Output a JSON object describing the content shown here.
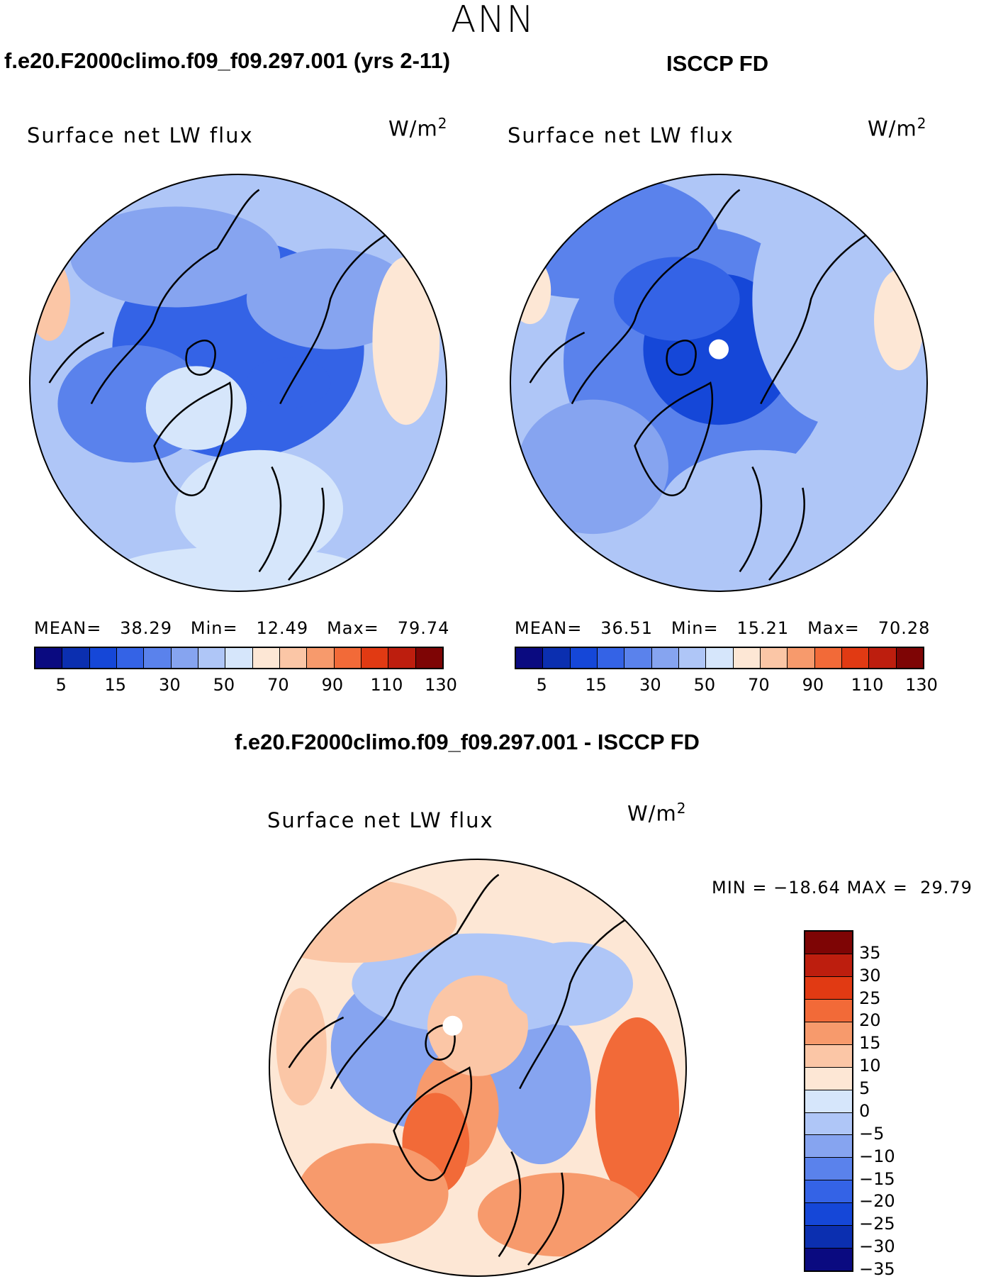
{
  "page_title": "ANN",
  "headers": {
    "model": "f.e20.F2000climo.f09_f09.297.001 (yrs 2-11)",
    "obs": "ISCCP FD",
    "diff": "f.e20.F2000climo.f09_f09.297.001 - ISCCP FD"
  },
  "chart_data": [
    {
      "type": "heatmap",
      "projection": "polar-stereographic-north",
      "title": "Surface net LW flux",
      "units_base": "W/m",
      "units_exp": "2",
      "stats": {
        "mean_label": "MEAN=",
        "mean": "38.29",
        "min_label": "Min=",
        "min": "12.49",
        "max_label": "Max=",
        "max": "79.74"
      },
      "contour_levels": [
        5,
        10,
        15,
        20,
        30,
        40,
        50,
        60,
        70,
        80,
        90,
        100,
        110,
        130
      ],
      "colorbar_tick_labels": [
        "5",
        "15",
        "30",
        "50",
        "70",
        "90",
        "110",
        "130"
      ],
      "colorbar_colors": [
        "#0a0a80",
        "#0b2fb0",
        "#1547d8",
        "#3463e6",
        "#5a82ec",
        "#86a4f0",
        "#afc6f7",
        "#d6e6fb",
        "#fde7d5",
        "#fbc6a6",
        "#f79a6c",
        "#f26a38",
        "#e13a13",
        "#bd1e0e",
        "#7e0505"
      ]
    },
    {
      "type": "heatmap",
      "projection": "polar-stereographic-north",
      "title": "Surface net LW flux",
      "units_base": "W/m",
      "units_exp": "2",
      "stats": {
        "mean_label": "MEAN=",
        "mean": "36.51",
        "min_label": "Min=",
        "min": "15.21",
        "max_label": "Max=",
        "max": "70.28"
      },
      "contour_levels": [
        5,
        10,
        15,
        20,
        30,
        40,
        50,
        60,
        70,
        80,
        90,
        100,
        110,
        130
      ],
      "colorbar_tick_labels": [
        "5",
        "15",
        "30",
        "50",
        "70",
        "90",
        "110",
        "130"
      ],
      "colorbar_colors": [
        "#0a0a80",
        "#0b2fb0",
        "#1547d8",
        "#3463e6",
        "#5a82ec",
        "#86a4f0",
        "#afc6f7",
        "#d6e6fb",
        "#fde7d5",
        "#fbc6a6",
        "#f79a6c",
        "#f26a38",
        "#e13a13",
        "#bd1e0e",
        "#7e0505"
      ]
    },
    {
      "type": "heatmap",
      "projection": "polar-stereographic-north",
      "title": "Surface net LW flux",
      "units_base": "W/m",
      "units_exp": "2",
      "stats": {
        "min_label": "MIN =",
        "min": "−18.64",
        "max_label": "MAX =",
        "max": "29.79"
      },
      "contour_levels": [
        -35,
        -30,
        -25,
        -20,
        -15,
        -10,
        -5,
        0,
        5,
        10,
        15,
        20,
        25,
        30,
        35
      ],
      "colorbar_tick_labels": [
        "35",
        "30",
        "25",
        "20",
        "15",
        "10",
        "5",
        "0",
        "−5",
        "−10",
        "−15",
        "−20",
        "−25",
        "−30",
        "−35"
      ],
      "colorbar_colors": [
        "#7e0505",
        "#bd1e0e",
        "#e13a13",
        "#f26a38",
        "#f79a6c",
        "#fbc6a6",
        "#fde7d5",
        "#d6e6fb",
        "#afc6f7",
        "#86a4f0",
        "#5a82ec",
        "#3463e6",
        "#1547d8",
        "#0b2fb0",
        "#0a0a80"
      ]
    }
  ]
}
